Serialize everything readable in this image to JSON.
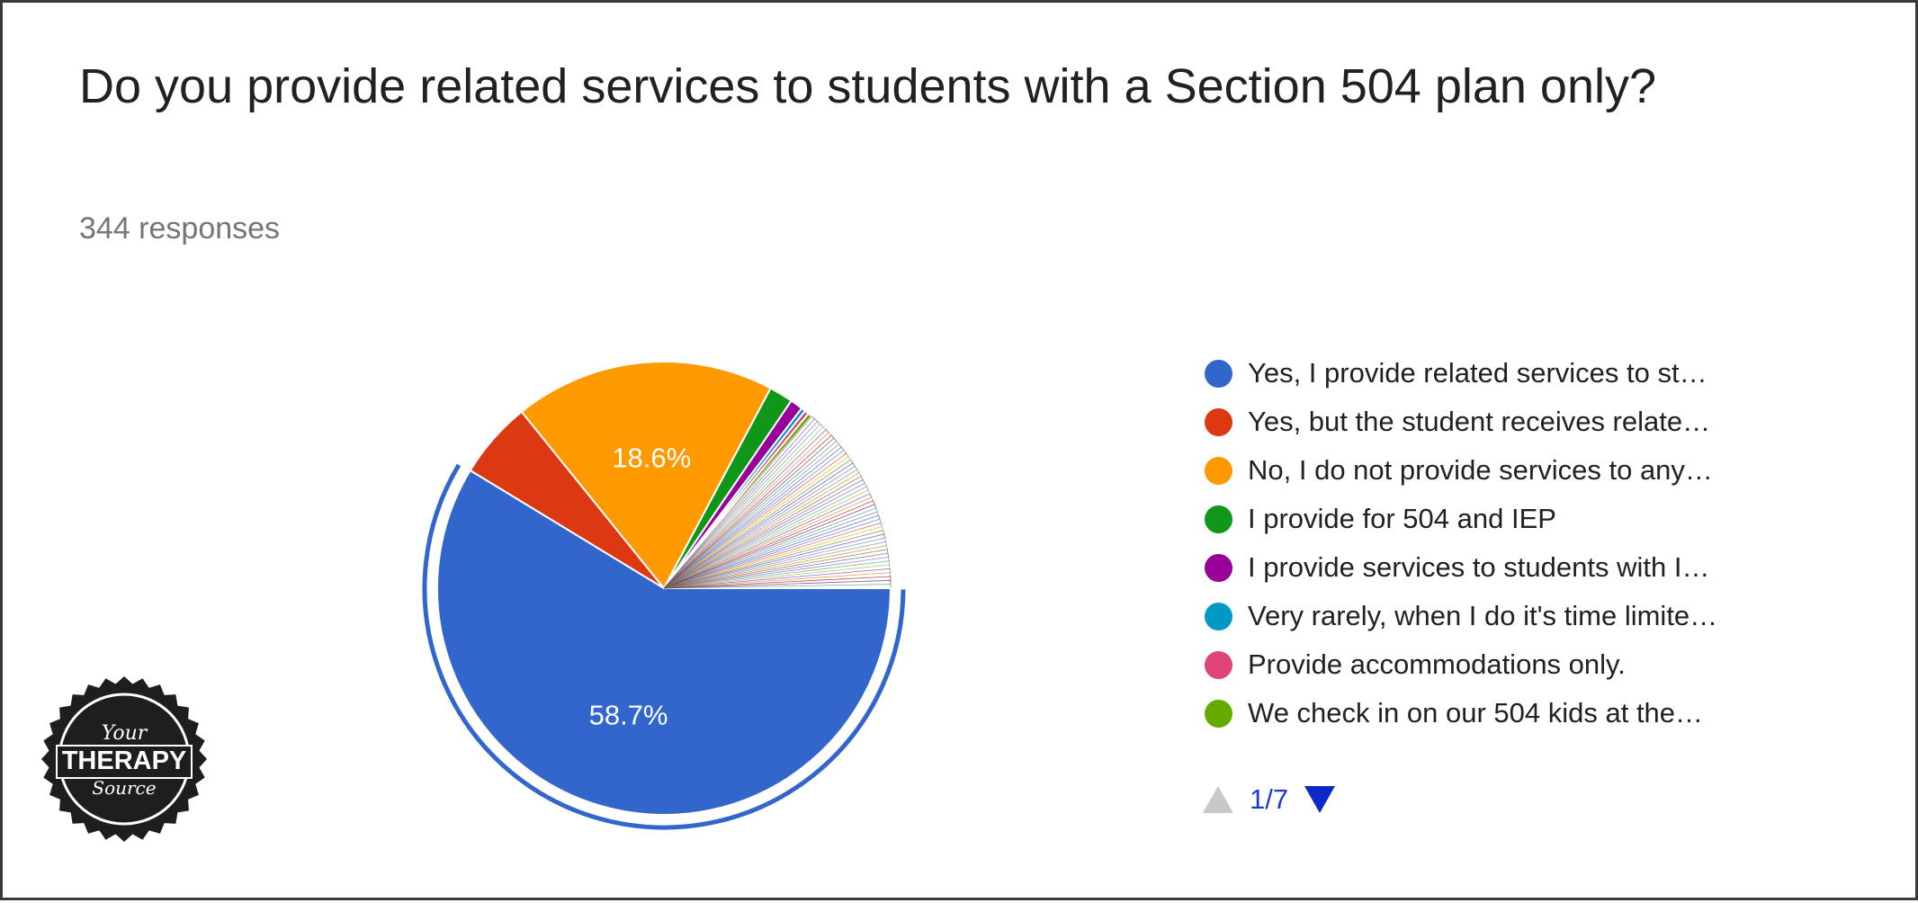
{
  "title": "Do you provide related services to students with a Section 504 plan only?",
  "responses_label": "344 responses",
  "chart_data": {
    "type": "pie",
    "categories": [
      "Yes, I provide related services to st…",
      "Yes, but the student receives relate…",
      "No, I do not provide services to any…",
      "I provide for 504 and IEP",
      "I provide services to students with I…",
      "Very rarely, when I do it's time limite…",
      "Provide accommodations only.",
      "We check in on our 504 kids at the…"
    ],
    "values": [
      58.7,
      5.5,
      18.6,
      1.7,
      0.9,
      0.3,
      0.3,
      0.3
    ],
    "colors": [
      "#3366cc",
      "#dc3912",
      "#ff9900",
      "#109618",
      "#990099",
      "#0099c6",
      "#dd4477",
      "#66aa00"
    ],
    "data_labels": [
      "58.7%",
      "",
      "18.6%",
      "",
      "",
      "",
      "",
      ""
    ],
    "exploded_index": 0,
    "remaining_slices_count": 50,
    "legend_position": "right"
  },
  "pager": {
    "label": "1/7",
    "up_icon": "triangle-up-icon",
    "down_icon": "triangle-down-icon"
  },
  "logo": {
    "line1": "Your",
    "line2": "THERAPY",
    "line3": "Source"
  }
}
